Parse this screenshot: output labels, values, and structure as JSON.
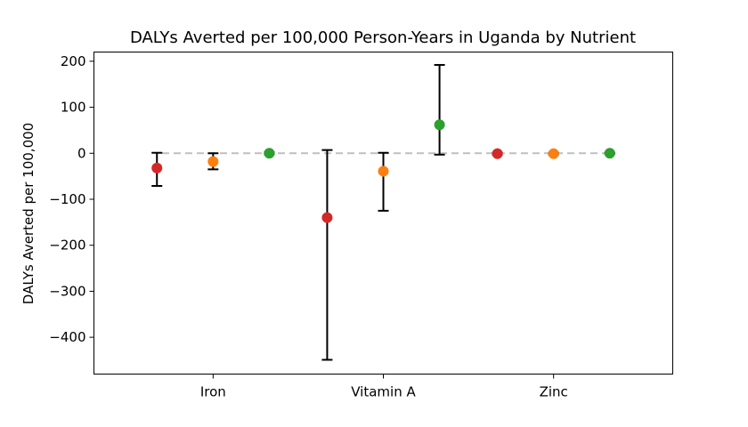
{
  "chart_data": {
    "type": "scatter",
    "title": "DALYs Averted per 100,000 Person-Years in Uganda by Nutrient",
    "xlabel": "",
    "ylabel": "DALYs Averted per 100,000",
    "categories": [
      "Iron",
      "Vitamin A",
      "Zinc"
    ],
    "ylim": [
      -480,
      220
    ],
    "yticks": [
      200,
      100,
      0,
      -100,
      -200,
      -300,
      -400
    ],
    "ytick_labels": [
      "200",
      "100",
      "0",
      "−100",
      "−200",
      "−300",
      "−400"
    ],
    "grid": false,
    "legend": "none",
    "reference_line": {
      "y": 0,
      "style": "dashed",
      "color": "#bfbfbf"
    },
    "series": [
      {
        "color": "#d62728",
        "offset": -0.33,
        "values": [
          -32,
          -140,
          -1
        ],
        "err_low": [
          -71,
          -449,
          -3
        ],
        "err_high": [
          1,
          7,
          1
        ]
      },
      {
        "color": "#ff7f0e",
        "offset": 0,
        "values": [
          -18,
          -39,
          -1
        ],
        "err_low": [
          -35,
          -125,
          -3
        ],
        "err_high": [
          0,
          1,
          1
        ]
      },
      {
        "color": "#2ca02c",
        "offset": 0.33,
        "values": [
          0,
          62,
          0
        ],
        "err_low": [
          -2,
          -3,
          -1
        ],
        "err_high": [
          2,
          192,
          1
        ]
      }
    ]
  }
}
